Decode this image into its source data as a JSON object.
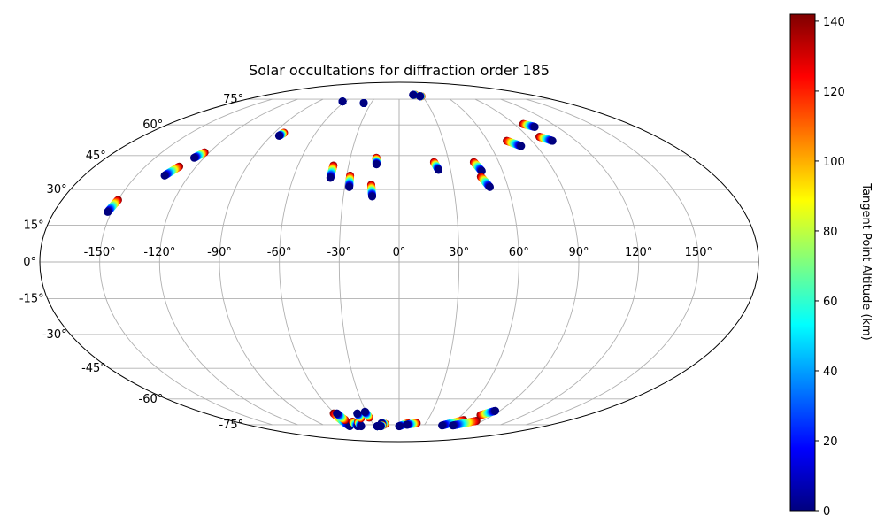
{
  "chart_data": {
    "type": "scatter",
    "projection": "mollweide",
    "title": "Solar occultations for diffraction order 185",
    "xlabel": "",
    "ylabel": "",
    "xlim": [
      -180,
      180
    ],
    "ylim": [
      -90,
      90
    ],
    "grid": true,
    "lon_ticks": [
      -150,
      -120,
      -90,
      -60,
      -30,
      0,
      30,
      60,
      90,
      120,
      150
    ],
    "lon_tick_labels": [
      "-150°",
      "-120°",
      "-90°",
      "-60°",
      "-30°",
      "0°",
      "30°",
      "60°",
      "90°",
      "120°",
      "150°"
    ],
    "lat_ticks": [
      75,
      60,
      45,
      30,
      15,
      0,
      -15,
      -30,
      -45,
      -60,
      -75
    ],
    "lat_tick_labels": [
      "75°",
      "60°",
      "45°",
      "30°",
      "15°",
      "0°",
      "-15°",
      "-30°",
      "-45°",
      "-60°",
      "-75°"
    ],
    "colorbar": {
      "label": "Tangent Point Altitude (km)",
      "colormap": "jet",
      "range": [
        0,
        142
      ],
      "ticks": [
        0,
        20,
        40,
        60,
        80,
        100,
        120,
        140
      ],
      "tick_labels": [
        "0",
        "20",
        "40",
        "60",
        "80",
        "100",
        "120",
        "140"
      ]
    },
    "colormap_colors": [
      "#00007f",
      "#0000ff",
      "#007fff",
      "#00ffff",
      "#7fff7f",
      "#ffff00",
      "#ff7f00",
      "#ff0000",
      "#7f0000"
    ],
    "series": [
      {
        "lon_top": -150,
        "lat_top": 25.5,
        "lon_bottom": -152,
        "lat_bottom": 20.5
      },
      {
        "lon_top": -130,
        "lat_top": 40,
        "lon_bottom": -134,
        "lat_bottom": 36
      },
      {
        "lon_top": -123,
        "lat_top": 46.5,
        "lon_bottom": -126,
        "lat_bottom": 44
      },
      {
        "lon_top": -83,
        "lat_top": 56,
        "lon_bottom": -84.5,
        "lat_bottom": 54.5
      },
      {
        "lon_top": -63,
        "lat_top": 73.5,
        "lon_bottom": -63,
        "lat_bottom": 73.5
      },
      {
        "lon_top": -38,
        "lat_top": 72.5,
        "lon_bottom": -38,
        "lat_bottom": 72.5
      },
      {
        "lon_top": -39,
        "lat_top": 40.5,
        "lon_bottom": -39,
        "lat_bottom": 35
      },
      {
        "lon_top": -28,
        "lat_top": 36,
        "lon_bottom": -27.5,
        "lat_bottom": 31
      },
      {
        "lon_top": -15.5,
        "lat_top": 32,
        "lon_bottom": -14.5,
        "lat_bottom": 27
      },
      {
        "lon_top": -14,
        "lat_top": 44,
        "lon_bottom": -13.5,
        "lat_bottom": 41
      },
      {
        "lon_top": 22,
        "lat_top": 78,
        "lon_bottom": 19,
        "lat_bottom": 78
      },
      {
        "lon_top": 29,
        "lat_top": 77,
        "lon_bottom": 27,
        "lat_bottom": 77
      },
      {
        "lon_top": 21,
        "lat_top": 42,
        "lon_bottom": 23,
        "lat_bottom": 38.5
      },
      {
        "lon_top": 45,
        "lat_top": 42,
        "lon_bottom": 48,
        "lat_bottom": 38
      },
      {
        "lon_top": 46.5,
        "lat_top": 35.5,
        "lon_bottom": 50,
        "lat_bottom": 31
      },
      {
        "lon_top": 73,
        "lat_top": 52,
        "lon_bottom": 80,
        "lat_bottom": 49.5
      },
      {
        "lon_top": 97,
        "lat_top": 60.5,
        "lon_bottom": 103,
        "lat_bottom": 59
      },
      {
        "lon_top": 98,
        "lat_top": 54,
        "lon_bottom": 104,
        "lat_bottom": 52
      },
      {
        "lon_top": -61,
        "lat_top": -68,
        "lon_bottom": -61,
        "lat_bottom": -76
      },
      {
        "lon_top": -57,
        "lat_top": -72,
        "lon_bottom": -58,
        "lat_bottom": -68
      },
      {
        "lon_top": -51,
        "lat_top": -73,
        "lon_bottom": -51,
        "lat_bottom": -76
      },
      {
        "lon_top": -45,
        "lat_top": -73,
        "lon_bottom": -47,
        "lat_bottom": -76
      },
      {
        "lon_top": -39,
        "lat_top": -71,
        "lon_bottom": -39,
        "lat_bottom": -68
      },
      {
        "lon_top": -30,
        "lat_top": -70.5,
        "lon_bottom": -31,
        "lat_bottom": -67
      },
      {
        "lon_top": -27,
        "lat_top": -76,
        "lon_bottom": -27,
        "lat_bottom": -76
      },
      {
        "lon_top": -16,
        "lat_top": -74.5,
        "lon_bottom": -20,
        "lat_bottom": -74
      },
      {
        "lon_top": -20,
        "lat_top": -75.5,
        "lon_bottom": -23,
        "lat_bottom": -76
      },
      {
        "lon_top": 10,
        "lat_top": -74,
        "lon_bottom": 0,
        "lat_bottom": -76
      },
      {
        "lon_top": 20,
        "lat_top": -74,
        "lon_bottom": 9,
        "lat_bottom": -75
      },
      {
        "lon_top": 68,
        "lat_top": -72,
        "lon_bottom": 52,
        "lat_bottom": -75.5
      },
      {
        "lon_top": 83,
        "lat_top": -72.5,
        "lon_bottom": 65,
        "lat_bottom": -75.5
      },
      {
        "lon_top": 78,
        "lat_top": -69,
        "lon_bottom": 86,
        "lat_bottom": -66.5
      }
    ]
  }
}
